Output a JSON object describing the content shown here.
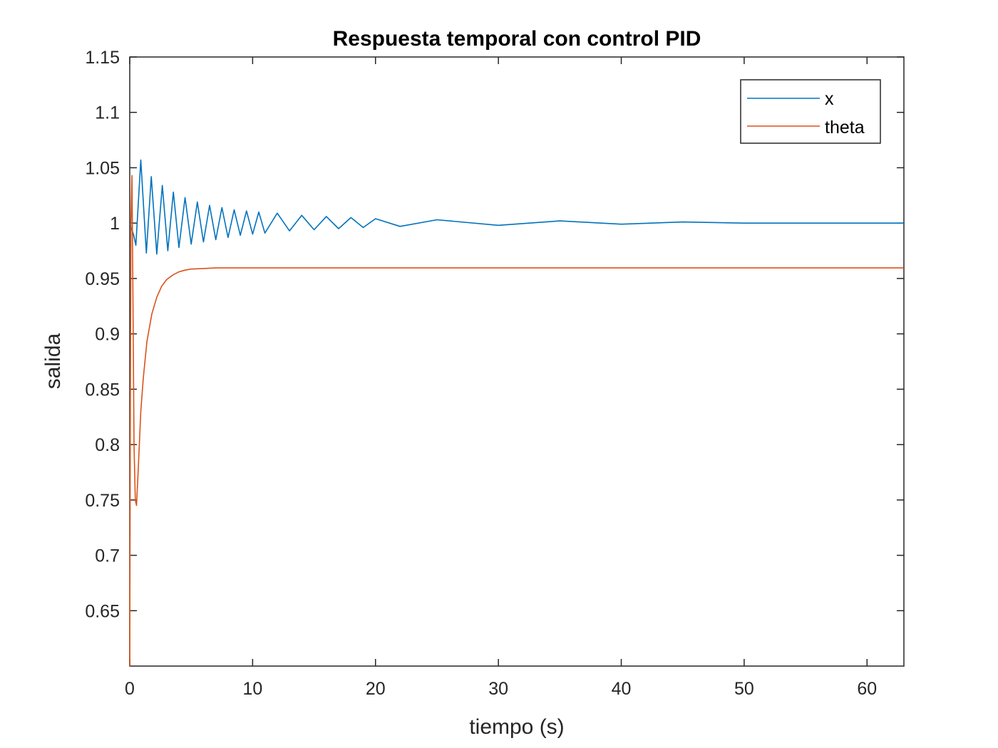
{
  "chart_data": {
    "type": "line",
    "title": "Respuesta temporal con control PID",
    "xlabel": "tiempo (s)",
    "ylabel": "salida",
    "xlim": [
      0,
      63
    ],
    "ylim": [
      0.6,
      1.15
    ],
    "xticks": [
      0,
      10,
      20,
      30,
      40,
      50,
      60
    ],
    "xtick_labels": [
      "0",
      "10",
      "20",
      "30",
      "40",
      "50",
      "60"
    ],
    "yticks": [
      0.65,
      0.7,
      0.75,
      0.8,
      0.85,
      0.9,
      0.95,
      1,
      1.05,
      1.1,
      1.15
    ],
    "ytick_labels": [
      "0.65",
      "0.7",
      "0.75",
      "0.8",
      "0.85",
      "0.9",
      "0.95",
      "1",
      "1.05",
      "1.1",
      "1.15"
    ],
    "grid": false,
    "legend_position": "top-right",
    "series": [
      {
        "name": "x",
        "color": "#0072BD",
        "x": [
          0,
          0.3,
          0.5,
          0.9,
          1.35,
          1.75,
          2.2,
          2.65,
          3.1,
          3.55,
          4.0,
          4.5,
          5.0,
          5.5,
          6.0,
          6.5,
          7.0,
          7.5,
          8.0,
          8.5,
          9.0,
          9.5,
          10.0,
          10.5,
          11.0,
          12.0,
          13.0,
          14.0,
          15.0,
          16.0,
          17.0,
          18.0,
          19.0,
          20.0,
          22.0,
          25.0,
          30.0,
          35.0,
          40.0,
          45.0,
          50.0,
          55.0,
          60.0,
          63.0
        ],
        "y": [
          1.0,
          0.99,
          0.98,
          1.057,
          0.973,
          1.042,
          0.972,
          1.034,
          0.975,
          1.028,
          0.978,
          1.023,
          0.981,
          1.019,
          0.983,
          1.016,
          0.985,
          1.014,
          0.987,
          1.012,
          0.989,
          1.011,
          0.99,
          1.01,
          0.991,
          1.009,
          0.993,
          1.007,
          0.994,
          1.006,
          0.995,
          1.005,
          0.996,
          1.004,
          0.997,
          1.003,
          0.998,
          1.002,
          0.999,
          1.001,
          1.0,
          1.0,
          1.0,
          1.0
        ]
      },
      {
        "name": "theta",
        "color": "#D95319",
        "x": [
          0,
          0.05,
          0.1,
          0.18,
          0.25,
          0.35,
          0.45,
          0.55,
          0.7,
          0.9,
          1.1,
          1.4,
          1.8,
          2.2,
          2.6,
          3.0,
          3.5,
          4.0,
          4.5,
          5.0,
          6.0,
          7.0,
          10.0,
          20.0,
          30.0,
          40.0,
          50.0,
          60.0,
          63.0
        ],
        "y": [
          0.6,
          0.85,
          1.0,
          1.043,
          0.95,
          0.8,
          0.75,
          0.745,
          0.78,
          0.83,
          0.86,
          0.893,
          0.918,
          0.933,
          0.943,
          0.949,
          0.953,
          0.956,
          0.9575,
          0.9585,
          0.959,
          0.9595,
          0.9595,
          0.9595,
          0.9595,
          0.9595,
          0.9595,
          0.9595,
          0.9595
        ]
      }
    ]
  }
}
